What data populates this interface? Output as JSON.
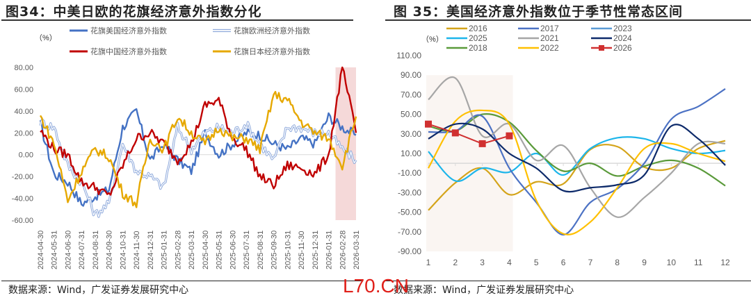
{
  "left": {
    "title": "图34：中美日欧的花旗经济意外指数分化",
    "unit": "（%）",
    "source": "数据来源：Wind，广发证券发展研究中心"
  },
  "right": {
    "title": "图 35：美国经济意外指数位于季节性常态区间",
    "unit": "（%）",
    "source": "数据来源：Wind，广发证券发展研究中心"
  },
  "watermark": "L70.CN",
  "chart_data": [
    {
      "type": "line",
      "title": "图34：中美日欧的花旗经济意外指数分化",
      "ylabel": "（%）",
      "ylim": [
        -60,
        80
      ],
      "yticks": [
        "80.00",
        "60.00",
        "40.00",
        "20.00",
        "0.00",
        "-20.00",
        "-40.00",
        "-60.00"
      ],
      "x": [
        "2024-04-30",
        "2024-05-31",
        "2024-06-30",
        "2024-07-31",
        "2024-08-31",
        "2024-09-30",
        "2024-10-31",
        "2024-11-30",
        "2024-12-31",
        "2025-01-31",
        "2025-02-28",
        "2025-03-31",
        "2025-04-30",
        "2025-05-31",
        "2025-06-30",
        "2025-07-31",
        "2025-08-31",
        "2025-09-30",
        "2025-10-31",
        "2025-11-30",
        "2025-12-31",
        "2026-01-31",
        "2026-02-28",
        "2026-03-31"
      ],
      "legend_position": "top",
      "highlight_region": {
        "from": "2026-01-31",
        "to": "2026-03-31",
        "color": "#f5d9d9"
      },
      "series": [
        {
          "name": "花旗美国经济意外指数",
          "color": "#4472c4",
          "style": "solid",
          "values": [
            28,
            -18,
            -25,
            -45,
            -38,
            -32,
            25,
            40,
            -5,
            10,
            -5,
            -15,
            20,
            0,
            10,
            20,
            18,
            10,
            5,
            15,
            10,
            35,
            25,
            18
          ]
        },
        {
          "name": "花旗欧洲经济意外指数",
          "color": "#8faadc",
          "style": "double",
          "values": [
            30,
            25,
            -10,
            -25,
            -55,
            -45,
            10,
            -15,
            -20,
            -30,
            25,
            5,
            20,
            25,
            20,
            28,
            10,
            -5,
            25,
            25,
            20,
            20,
            5,
            -5
          ]
        },
        {
          "name": "花旗中国经济意外指数",
          "color": "#c00000",
          "style": "solid",
          "values": [
            22,
            5,
            0,
            -25,
            -30,
            -38,
            -10,
            15,
            20,
            10,
            -5,
            10,
            45,
            50,
            15,
            5,
            -20,
            -28,
            -10,
            -12,
            -18,
            0,
            80,
            20
          ]
        },
        {
          "name": "花旗日本经济意外指数",
          "color": "#e6a800",
          "style": "solid",
          "values": [
            35,
            10,
            -42,
            -15,
            5,
            -2,
            -35,
            -45,
            15,
            5,
            35,
            20,
            10,
            25,
            15,
            15,
            5,
            55,
            50,
            30,
            20,
            15,
            -10,
            35
          ]
        }
      ]
    },
    {
      "type": "line",
      "title": "图 35：美国经济意外指数位于季节性常态区间",
      "ylabel": "（%）",
      "ylim": [
        -90,
        110
      ],
      "yticks": [
        "110.00",
        "90.00",
        "70.00",
        "50.00",
        "30.00",
        "10.00",
        "-10.00",
        "-30.00",
        "-50.00",
        "-70.00",
        "-90.00"
      ],
      "x": [
        1,
        2,
        3,
        4,
        5,
        6,
        7,
        8,
        9,
        10,
        11,
        12
      ],
      "legend_position": "top",
      "highlight_region": {
        "from": 1,
        "to": 4,
        "color": "#faf5f2"
      },
      "series": [
        {
          "name": "2016",
          "color": "#d4a41a",
          "values": [
            -48,
            -20,
            -5,
            -32,
            -19,
            -21,
            14,
            17,
            -4,
            -5,
            15,
            23
          ]
        },
        {
          "name": "2025",
          "color": "#1cb5ea",
          "values": [
            12,
            -18,
            -5,
            -9,
            10,
            -12,
            15,
            26,
            25,
            15,
            10,
            13
          ]
        },
        {
          "name": "2018",
          "color": "#5a9a3a",
          "values": [
            38,
            33,
            50,
            42,
            13,
            -8,
            0,
            -13,
            -3,
            3,
            -5,
            -23
          ]
        },
        {
          "name": "2017",
          "color": "#4c72c4",
          "values": [
            32,
            33,
            48,
            -5,
            -40,
            -73,
            -40,
            -26,
            0,
            45,
            58,
            76
          ]
        },
        {
          "name": "2021",
          "color": "#a6a6a6",
          "values": [
            65,
            87,
            28,
            40,
            3,
            18,
            -25,
            -55,
            -35,
            -10,
            20,
            20
          ]
        },
        {
          "name": "2022",
          "color": "#ffc000",
          "values": [
            -5,
            43,
            54,
            40,
            -38,
            -72,
            -60,
            -25,
            15,
            20,
            10,
            2
          ]
        },
        {
          "name": "2023",
          "color": "#5b9bd5",
          "values": []
        },
        {
          "name": "2024",
          "color": "#0d2a6a",
          "values": [
            25,
            40,
            35,
            10,
            -5,
            -28,
            -25,
            -22,
            -12,
            38,
            25,
            -2
          ]
        },
        {
          "name": "2026",
          "color": "#d03030",
          "marker": "square",
          "values": [
            40,
            31,
            20,
            28
          ]
        }
      ]
    }
  ]
}
